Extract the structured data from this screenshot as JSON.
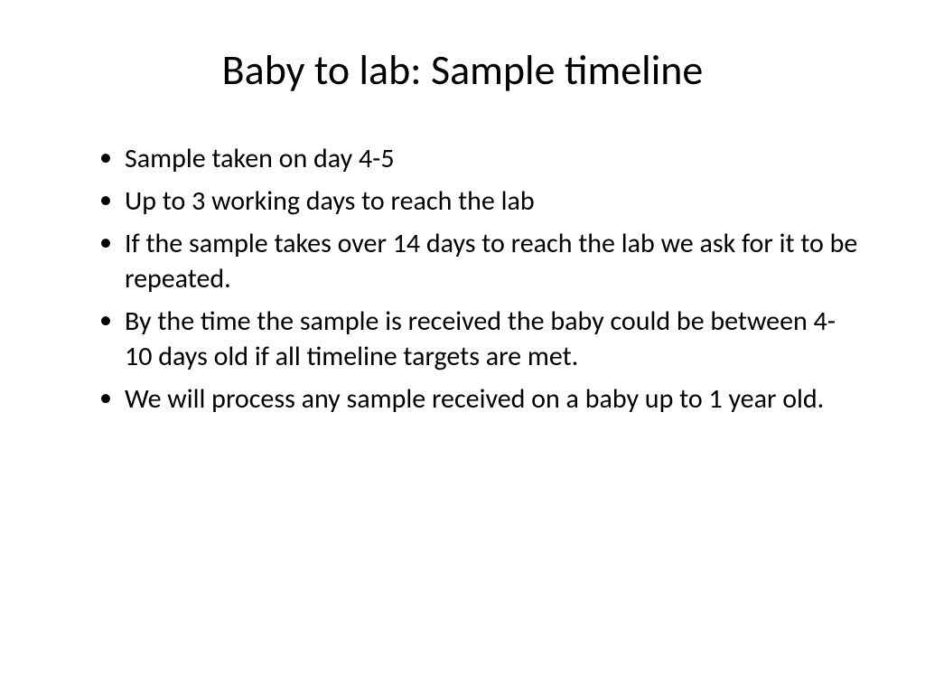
{
  "slide": {
    "title": "Baby to lab: Sample timeline",
    "bullets": [
      "Sample taken on day 4-5",
      "Up to 3 working days to reach the lab",
      "If the sample takes over 14 days to reach the lab we ask for it to be repeated.",
      "By the time the sample is received the baby could be between 4- 10 days old if all timeline targets are met.",
      "We will process any sample received on a baby up to 1 year old."
    ],
    "styling": {
      "background_color": "#ffffff",
      "text_color": "#000000",
      "title_fontsize": 46,
      "body_fontsize": 30,
      "font_family": "Calibri",
      "title_weight": 400,
      "body_weight": 400
    }
  }
}
